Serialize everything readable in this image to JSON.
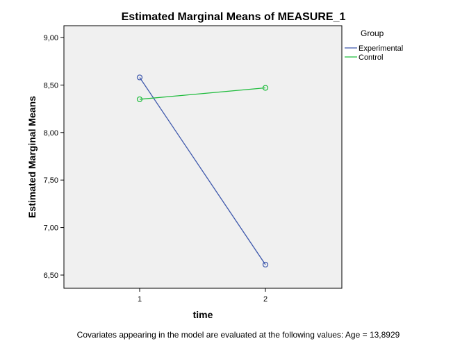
{
  "chart_data": {
    "type": "line",
    "title": "Estimated Marginal Means of MEASURE_1",
    "xlabel": "time",
    "ylabel": "Estimated Marginal Means",
    "categories": [
      "1",
      "2"
    ],
    "yticks": [
      "6,50",
      "7,00",
      "7,50",
      "8,00",
      "8,50",
      "9,00"
    ],
    "ylim": [
      6.5,
      9.0
    ],
    "grid": false,
    "legend": {
      "title": "Group",
      "placement": "right"
    },
    "series": [
      {
        "name": "Experimental",
        "values": [
          8.58,
          6.61
        ],
        "color": "#3e58ac"
      },
      {
        "name": "Control",
        "values": [
          8.35,
          8.47
        ],
        "color": "#1ebc3c"
      }
    ],
    "footnote": "Covariates appearing in the model are evaluated at the following values: Age = 13,8929"
  },
  "colors": {
    "plot_background": "#f0f0f0",
    "axis": "#000000"
  }
}
